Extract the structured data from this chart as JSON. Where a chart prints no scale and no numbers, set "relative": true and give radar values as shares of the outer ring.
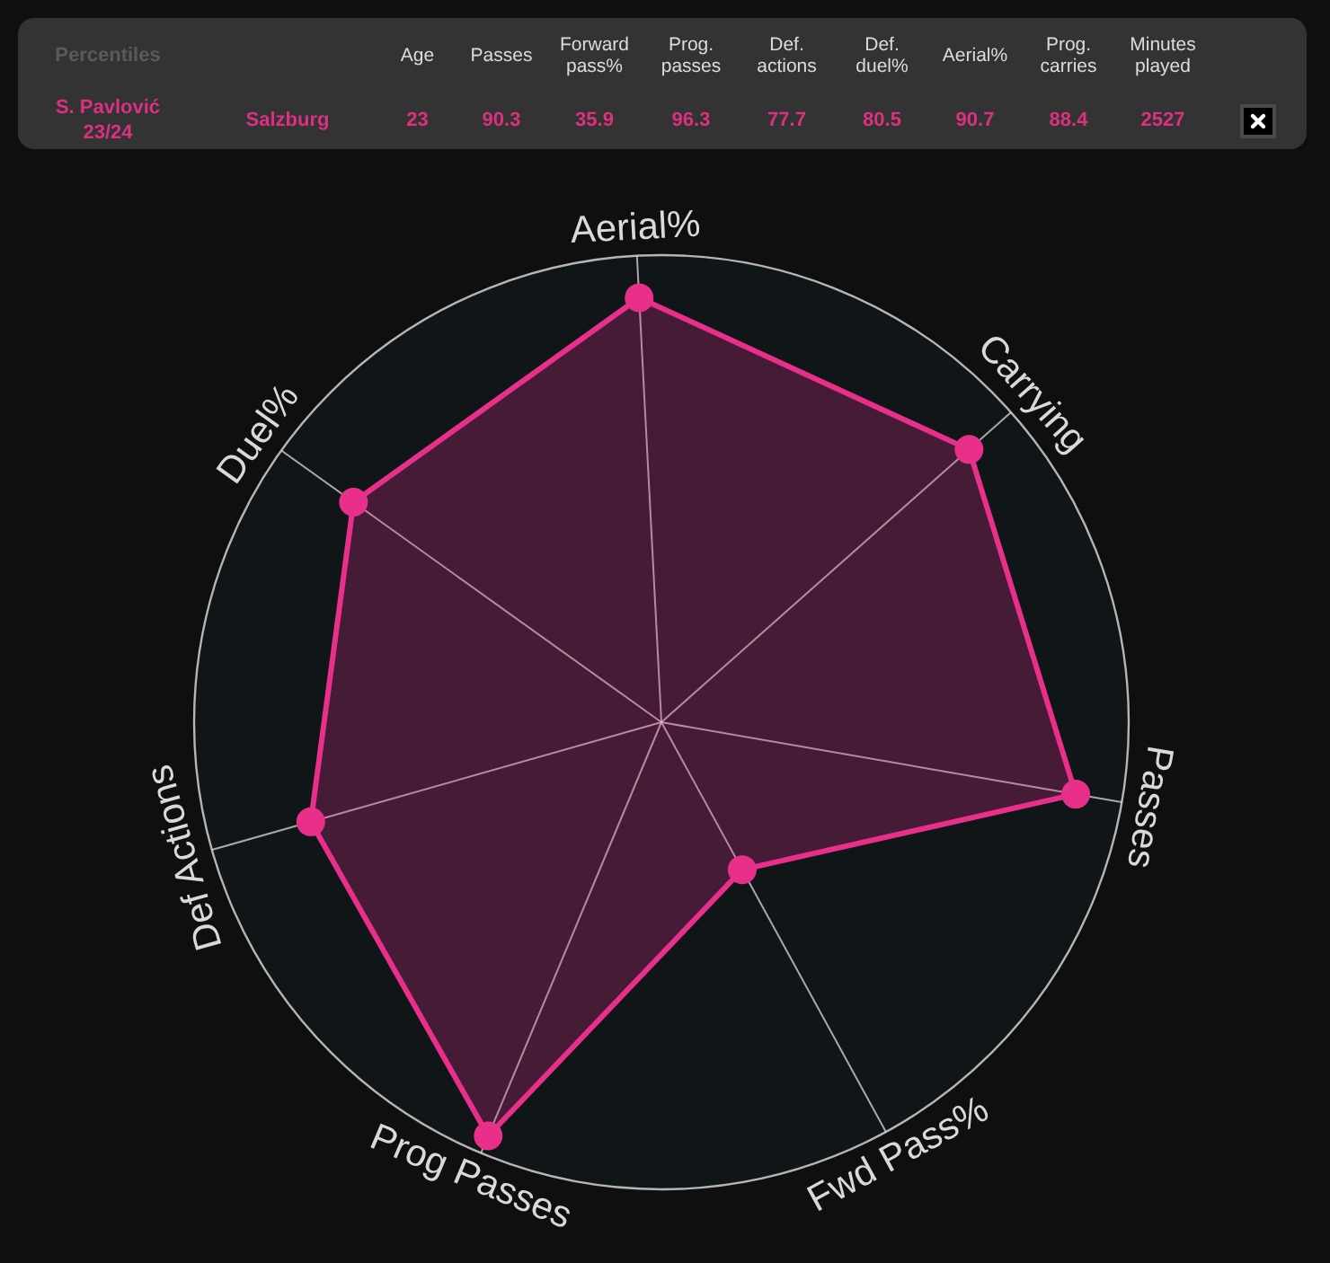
{
  "chart_data": [
    {
      "type": "other",
      "title": "Percentiles",
      "categories": [
        "Age",
        "Passes",
        "Forward pass%",
        "Prog. passes",
        "Def. actions",
        "Def. duel%",
        "Aerial%",
        "Prog. carries",
        "Minutes played"
      ],
      "series": [
        {
          "name": "S. Pavlović 23/24",
          "values": [
            23,
            90.3,
            35.9,
            96.3,
            77.7,
            80.5,
            90.7,
            88.4,
            2527
          ]
        }
      ],
      "annotations": [
        "Salzburg"
      ],
      "data_labels": true
    },
    {
      "type": "radar",
      "categories": [
        "Aerial%",
        "Carrying",
        "Passes",
        "Fwd Pass%",
        "Prog Passes",
        "Def Actions",
        "Duel%"
      ],
      "series": [
        {
          "color": "#e8308a",
          "values": [
            0.91,
            0.88,
            0.9,
            0.36,
            0.96,
            0.78,
            0.81
          ]
        }
      ],
      "relative": true,
      "grid": true,
      "marker": "circle",
      "legend": false
    }
  ]
}
